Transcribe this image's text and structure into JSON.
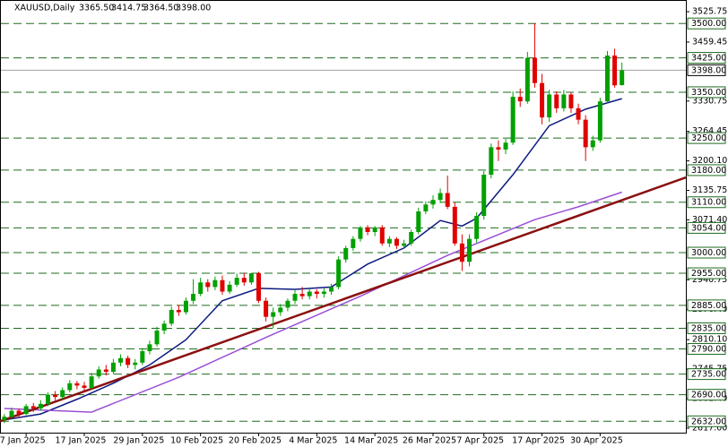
{
  "chart_data": {
    "type": "candlestick",
    "symbol": "XAUUSD,Daily",
    "info": [
      "3365.50",
      "3414.75",
      "3364.50",
      "3398.00"
    ],
    "xlim": [
      -0.6,
      93.8
    ],
    "ylim": [
      2607.2,
      3551.2
    ],
    "xticks": [
      {
        "value": 3,
        "label": "7 Jan 2025"
      },
      {
        "value": 11,
        "label": "17 Jan 2025"
      },
      {
        "value": 19,
        "label": "29 Jan 2025"
      },
      {
        "value": 27,
        "label": "10 Feb 2025"
      },
      {
        "value": 35,
        "label": "20 Feb 2025"
      },
      {
        "value": 43,
        "label": "4 Mar 2025"
      },
      {
        "value": 51,
        "label": "14 Mar 2025"
      },
      {
        "value": 59,
        "label": "26 Mar 2025"
      },
      {
        "value": 66,
        "label": "7 Apr 2025"
      },
      {
        "value": 74,
        "label": "17 Apr 2025"
      },
      {
        "value": 82,
        "label": "30 Apr 2025"
      }
    ],
    "yticks": [
      3525.75,
      3459.45,
      3330.75,
      3264.45,
      {
        "value": 3200.1,
        "label": "3200.10"
      },
      3135.75,
      {
        "value": 3071.4,
        "label": "3071.40"
      },
      2940.75,
      {
        "value": 2876.4,
        "label": "2876.40"
      },
      {
        "value": 2810.1,
        "label": "2810.10"
      },
      2745.75,
      {
        "value": 2681.4,
        "label": "2681.40"
      },
      {
        "value": 2617,
        "label": "2617.00"
      }
    ],
    "levels": [
      {
        "value": 3500,
        "label": "3500.00"
      },
      {
        "value": 3425,
        "label": "3425.00"
      },
      {
        "value": 3350,
        "label": "3350.00"
      },
      {
        "value": 3250,
        "label": "3250.00"
      },
      {
        "value": 3180,
        "label": "3180.00"
      },
      {
        "value": 3110,
        "label": "3110.00"
      },
      {
        "value": 3054,
        "label": "3054.00"
      },
      {
        "value": 3000,
        "label": "3000.00"
      },
      {
        "value": 2955,
        "label": "2955.00"
      },
      {
        "value": 2885,
        "label": "2885.00"
      },
      {
        "value": 2835,
        "label": "2835.00"
      },
      {
        "value": 2790,
        "label": "2790.00"
      },
      {
        "value": 2735,
        "label": "2735.00"
      },
      {
        "value": 2690,
        "label": "2690.00"
      },
      {
        "value": 2632,
        "label": "2632.00"
      }
    ],
    "level_color": "#1e6b1e",
    "last_price": {
      "value": 3398,
      "label": "3398.00"
    },
    "up_color": "#00a000",
    "down_color": "#e00000",
    "candles": [
      [
        2635,
        2648,
        2628,
        2642
      ],
      [
        2642,
        2662,
        2638,
        2655
      ],
      [
        2655,
        2660,
        2640,
        2648
      ],
      [
        2648,
        2670,
        2645,
        2665
      ],
      [
        2665,
        2672,
        2652,
        2660
      ],
      [
        2660,
        2678,
        2655,
        2670
      ],
      [
        2670,
        2695,
        2665,
        2690
      ],
      [
        2690,
        2698,
        2678,
        2685
      ],
      [
        2685,
        2706,
        2680,
        2700
      ],
      [
        2700,
        2722,
        2695,
        2715
      ],
      [
        2715,
        2720,
        2702,
        2710
      ],
      [
        2710,
        2718,
        2698,
        2705
      ],
      [
        2705,
        2738,
        2700,
        2730
      ],
      [
        2730,
        2752,
        2725,
        2745
      ],
      [
        2745,
        2755,
        2732,
        2740
      ],
      [
        2740,
        2768,
        2735,
        2760
      ],
      [
        2760,
        2778,
        2752,
        2770
      ],
      [
        2770,
        2775,
        2748,
        2755
      ],
      [
        2755,
        2768,
        2745,
        2760
      ],
      [
        2760,
        2792,
        2755,
        2785
      ],
      [
        2785,
        2808,
        2778,
        2800
      ],
      [
        2800,
        2838,
        2795,
        2830
      ],
      [
        2830,
        2852,
        2822,
        2845
      ],
      [
        2845,
        2882,
        2840,
        2875
      ],
      [
        2875,
        2886,
        2862,
        2870
      ],
      [
        2870,
        2902,
        2865,
        2895
      ],
      [
        2895,
        2942,
        2888,
        2910
      ],
      [
        2910,
        2945,
        2905,
        2935
      ],
      [
        2935,
        2942,
        2915,
        2925
      ],
      [
        2925,
        2948,
        2918,
        2940
      ],
      [
        2940,
        2950,
        2908,
        2915
      ],
      [
        2915,
        2938,
        2910,
        2930
      ],
      [
        2930,
        2954,
        2925,
        2945
      ],
      [
        2945,
        2956,
        2928,
        2935
      ],
      [
        2935,
        2956,
        2930,
        2955
      ],
      [
        2955,
        2958,
        2890,
        2895
      ],
      [
        2895,
        2902,
        2850,
        2860
      ],
      [
        2860,
        2880,
        2835,
        2870
      ],
      [
        2870,
        2888,
        2862,
        2880
      ],
      [
        2880,
        2900,
        2872,
        2895
      ],
      [
        2895,
        2918,
        2888,
        2910
      ],
      [
        2910,
        2925,
        2898,
        2905
      ],
      [
        2905,
        2922,
        2898,
        2915
      ],
      [
        2915,
        2920,
        2900,
        2910
      ],
      [
        2910,
        2922,
        2902,
        2915
      ],
      [
        2915,
        2932,
        2908,
        2925
      ],
      [
        2925,
        2992,
        2920,
        2985
      ],
      [
        2985,
        3015,
        2978,
        3010
      ],
      [
        3010,
        3036,
        3004,
        3030
      ],
      [
        3030,
        3058,
        3024,
        3055
      ],
      [
        3055,
        3060,
        3038,
        3045
      ],
      [
        3045,
        3058,
        3036,
        3055
      ],
      [
        3055,
        3060,
        3015,
        3020
      ],
      [
        3020,
        3036,
        3012,
        3030
      ],
      [
        3030,
        3034,
        3008,
        3015
      ],
      [
        3015,
        3028,
        3010,
        3020
      ],
      [
        3020,
        3050,
        3015,
        3045
      ],
      [
        3045,
        3098,
        3040,
        3090
      ],
      [
        3090,
        3112,
        3084,
        3105
      ],
      [
        3105,
        3125,
        3096,
        3115
      ],
      [
        3115,
        3140,
        3108,
        3130
      ],
      [
        3130,
        3168,
        3095,
        3100
      ],
      [
        3100,
        3110,
        3015,
        3020
      ],
      [
        3020,
        3040,
        2960,
        2980
      ],
      [
        2980,
        3040,
        2970,
        3030
      ],
      [
        3030,
        3088,
        3022,
        3080
      ],
      [
        3080,
        3178,
        3072,
        3170
      ],
      [
        3170,
        3238,
        3162,
        3230
      ],
      [
        3230,
        3245,
        3200,
        3225
      ],
      [
        3225,
        3248,
        3215,
        3240
      ],
      [
        3240,
        3352,
        3235,
        3340
      ],
      [
        3340,
        3358,
        3318,
        3330
      ],
      [
        3330,
        3438,
        3325,
        3425
      ],
      [
        3425,
        3500,
        3360,
        3370
      ],
      [
        3370,
        3390,
        3280,
        3295
      ],
      [
        3295,
        3355,
        3285,
        3345
      ],
      [
        3345,
        3352,
        3305,
        3315
      ],
      [
        3315,
        3355,
        3308,
        3345
      ],
      [
        3345,
        3350,
        3305,
        3315
      ],
      [
        3315,
        3325,
        3280,
        3290
      ],
      [
        3290,
        3300,
        3200,
        3230
      ],
      [
        3230,
        3255,
        3222,
        3245
      ],
      [
        3245,
        3338,
        3240,
        3330
      ],
      [
        3330,
        3440,
        3325,
        3430
      ],
      [
        3430,
        3445,
        3360,
        3365
      ],
      [
        3365.5,
        3414.75,
        3364.5,
        3398
      ]
    ],
    "lines": [
      {
        "color": "#0d1a80",
        "x": [
          0,
          5,
          10,
          15,
          20,
          25,
          30,
          35,
          40,
          45,
          50,
          55,
          60,
          63,
          65,
          70,
          75,
          80,
          85
        ],
        "values": [
          2635,
          2648,
          2680,
          2715,
          2755,
          2810,
          2895,
          2922,
          2920,
          2925,
          2975,
          3010,
          3070,
          3058,
          3075,
          3170,
          3277,
          3313,
          3336
        ]
      },
      {
        "color": "#9a4fd6",
        "x": [
          0,
          12,
          24,
          36,
          49,
          61,
          67,
          73,
          79,
          85
        ],
        "values": [
          2660,
          2652,
          2728,
          2815,
          2905,
          2994,
          3033,
          3072,
          3100,
          3132
        ]
      },
      {
        "color": "#8b1010",
        "x": [
          -0.6,
          93.8
        ],
        "values": [
          2632,
          3164
        ]
      }
    ]
  }
}
